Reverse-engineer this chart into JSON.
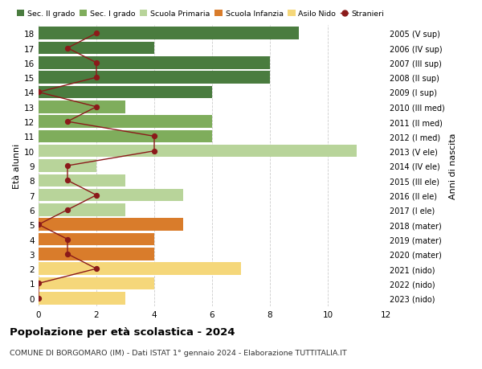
{
  "ages": [
    18,
    17,
    16,
    15,
    14,
    13,
    12,
    11,
    10,
    9,
    8,
    7,
    6,
    5,
    4,
    3,
    2,
    1,
    0
  ],
  "years": [
    "2005 (V sup)",
    "2006 (IV sup)",
    "2007 (III sup)",
    "2008 (II sup)",
    "2009 (I sup)",
    "2010 (III med)",
    "2011 (II med)",
    "2012 (I med)",
    "2013 (V ele)",
    "2014 (IV ele)",
    "2015 (III ele)",
    "2016 (II ele)",
    "2017 (I ele)",
    "2018 (mater)",
    "2019 (mater)",
    "2020 (mater)",
    "2021 (nido)",
    "2022 (nido)",
    "2023 (nido)"
  ],
  "bar_values": [
    9,
    4,
    8,
    8,
    6,
    3,
    6,
    6,
    11,
    2,
    3,
    5,
    3,
    5,
    4,
    4,
    7,
    4,
    3
  ],
  "bar_colors": [
    "#4a7c3f",
    "#4a7c3f",
    "#4a7c3f",
    "#4a7c3f",
    "#4a7c3f",
    "#7fad5c",
    "#7fad5c",
    "#7fad5c",
    "#b8d49a",
    "#b8d49a",
    "#b8d49a",
    "#b8d49a",
    "#b8d49a",
    "#d97c2b",
    "#d97c2b",
    "#d97c2b",
    "#f5d77a",
    "#f5d77a",
    "#f5d77a"
  ],
  "stranieri_values": [
    2,
    1,
    2,
    2,
    0,
    2,
    1,
    4,
    4,
    1,
    1,
    2,
    1,
    0,
    1,
    1,
    2,
    0,
    0
  ],
  "stranieri_color": "#8b1a1a",
  "xlim": [
    0,
    12
  ],
  "ylabel_left": "Età alunni",
  "ylabel_right": "Anni di nascita",
  "title": "Popolazione per età scolastica - 2024",
  "subtitle": "COMUNE DI BORGOMARO (IM) - Dati ISTAT 1° gennaio 2024 - Elaborazione TUTTITALIA.IT",
  "legend_labels": [
    "Sec. II grado",
    "Sec. I grado",
    "Scuola Primaria",
    "Scuola Infanzia",
    "Asilo Nido",
    "Stranieri"
  ],
  "legend_colors": [
    "#4a7c3f",
    "#7fad5c",
    "#b8d49a",
    "#d97c2b",
    "#f5d77a",
    "#8b1a1a"
  ],
  "bg_color": "#ffffff",
  "grid_color": "#cccccc"
}
